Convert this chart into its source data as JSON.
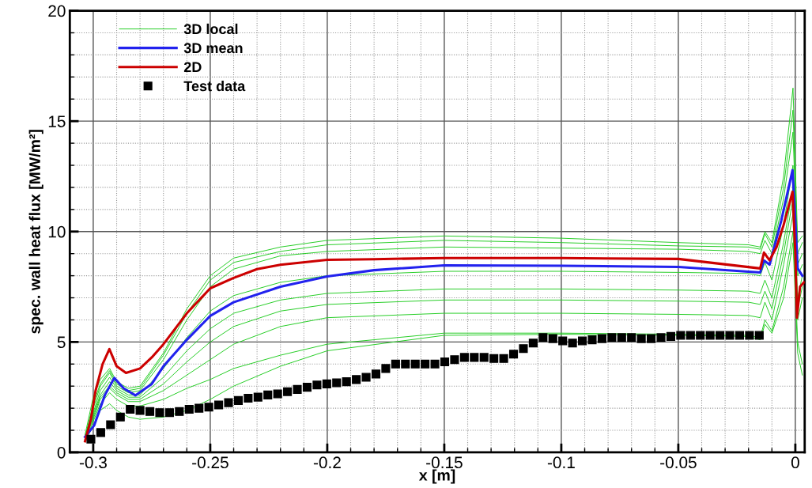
{
  "chart_data": {
    "type": "line",
    "xlabel": "x [m]",
    "ylabel": "spec. wall heat flux [MW/m²]",
    "xlim": [
      -0.31,
      0.004
    ],
    "ylim": [
      0,
      20
    ],
    "xticks": [
      -0.3,
      -0.25,
      -0.2,
      -0.15,
      -0.1,
      -0.05,
      0
    ],
    "yticks": [
      0,
      5,
      10,
      15,
      20
    ],
    "grid": true,
    "legend": "top left",
    "line_style": "solid",
    "x": [
      -0.3035,
      -0.3,
      -0.297,
      -0.293,
      -0.29,
      -0.285,
      -0.28,
      -0.27,
      -0.26,
      -0.25,
      -0.24,
      -0.22,
      -0.2,
      -0.15,
      -0.1,
      -0.05,
      -0.02,
      -0.015,
      -0.013,
      -0.01,
      -0.005,
      -0.001,
      0.001,
      0.003
    ],
    "series": [
      {
        "name": "3D local",
        "color": "#22cc22",
        "values": [
          0.8,
          2.5,
          3.3,
          3.8,
          3.2,
          2.9,
          3.0,
          4.5,
          6.5,
          8.0,
          8.8,
          9.3,
          9.6,
          9.8,
          9.7,
          9.5,
          9.4,
          9.3,
          10.0,
          9.5,
          12.5,
          16.5,
          9.5,
          9.8
        ]
      },
      {
        "color": "#22cc22",
        "values": [
          0.7,
          2.2,
          3.1,
          3.7,
          3.1,
          2.8,
          2.9,
          4.4,
          6.3,
          7.8,
          8.6,
          9.1,
          9.4,
          9.6,
          9.5,
          9.35,
          9.3,
          9.2,
          9.9,
          9.3,
          12.0,
          15.5,
          9.0,
          9.5
        ]
      },
      {
        "color": "#22cc22",
        "values": [
          0.7,
          2.0,
          3.0,
          3.6,
          3.0,
          2.7,
          2.8,
          4.2,
          6.0,
          7.5,
          8.3,
          8.9,
          9.1,
          9.3,
          9.25,
          9.2,
          9.1,
          9.0,
          9.6,
          9.0,
          11.5,
          14.5,
          8.5,
          9.0
        ]
      },
      {
        "color": "#22cc22",
        "values": [
          0.6,
          1.8,
          2.8,
          3.4,
          2.9,
          2.6,
          2.6,
          3.8,
          5.2,
          6.4,
          7.1,
          7.7,
          8.0,
          8.2,
          8.2,
          8.15,
          8.1,
          8.0,
          8.6,
          7.8,
          10.3,
          13.0,
          8.0,
          8.5
        ]
      },
      {
        "color": "#22cc22",
        "values": [
          0.6,
          1.7,
          2.6,
          3.2,
          2.8,
          2.5,
          2.5,
          3.4,
          4.6,
          5.6,
          6.3,
          6.9,
          7.2,
          7.4,
          7.4,
          7.35,
          7.3,
          7.2,
          7.8,
          7.0,
          9.5,
          12.0,
          7.0,
          8.0
        ]
      },
      {
        "color": "#22cc22",
        "values": [
          0.6,
          1.6,
          2.5,
          3.0,
          2.7,
          2.4,
          2.4,
          3.1,
          4.1,
          5.0,
          5.7,
          6.4,
          6.7,
          6.9,
          6.9,
          6.85,
          6.8,
          6.7,
          7.3,
          6.5,
          9.0,
          11.5,
          6.5,
          7.5
        ]
      },
      {
        "color": "#22cc22",
        "values": [
          0.6,
          1.5,
          2.4,
          2.9,
          2.6,
          2.3,
          2.3,
          2.8,
          3.5,
          4.2,
          4.9,
          5.7,
          6.1,
          6.3,
          6.3,
          6.25,
          6.2,
          6.1,
          6.8,
          6.0,
          8.5,
          10.8,
          6.0,
          7.0
        ]
      },
      {
        "color": "#22cc22",
        "values": [
          0.5,
          1.4,
          2.2,
          2.7,
          2.4,
          2.1,
          2.1,
          2.4,
          2.9,
          3.3,
          3.8,
          4.4,
          4.9,
          5.4,
          5.4,
          5.35,
          5.3,
          5.2,
          6.0,
          5.5,
          7.5,
          10.0,
          5.0,
          4.0
        ]
      },
      {
        "color": "#22cc22",
        "values": [
          0.5,
          1.2,
          1.9,
          2.2,
          1.9,
          1.6,
          1.5,
          1.6,
          1.9,
          2.4,
          3.0,
          3.9,
          4.6,
          5.3,
          5.35,
          5.3,
          5.25,
          5.1,
          5.8,
          5.4,
          7.0,
          9.5,
          4.5,
          3.5
        ]
      },
      {
        "name": "3D mean",
        "color": "#2222ee",
        "x": [
          -0.3035,
          -0.2996,
          -0.295,
          -0.291,
          -0.287,
          -0.282,
          -0.275,
          -0.27,
          -0.26,
          -0.25,
          -0.24,
          -0.22,
          -0.2,
          -0.18,
          -0.15,
          -0.1,
          -0.05,
          -0.015,
          -0.0134,
          -0.011,
          -0.006,
          -0.0012,
          0.0,
          0.001,
          0.003
        ],
        "values": [
          0.7,
          1.22,
          2.6,
          3.37,
          2.9,
          2.58,
          3.1,
          3.9,
          5.1,
          6.18,
          6.8,
          7.5,
          7.97,
          8.25,
          8.47,
          8.45,
          8.4,
          8.15,
          8.69,
          8.5,
          10.5,
          12.78,
          10.5,
          8.33,
          8.0
        ]
      },
      {
        "name": "2D",
        "color": "#cc0000",
        "x": [
          -0.3035,
          -0.301,
          -0.299,
          -0.296,
          -0.2931,
          -0.29,
          -0.286,
          -0.28,
          -0.275,
          -0.27,
          -0.265,
          -0.26,
          -0.25,
          -0.24,
          -0.23,
          -0.22,
          -0.2,
          -0.18,
          -0.15,
          -0.1,
          -0.05,
          -0.015,
          -0.0134,
          -0.011,
          -0.008,
          -0.005,
          -0.0012,
          0.0,
          0.0007,
          0.002,
          0.0037
        ],
        "values": [
          0.5,
          1.5,
          2.8,
          4.0,
          4.68,
          3.9,
          3.6,
          3.8,
          4.3,
          4.9,
          5.6,
          6.3,
          7.43,
          7.9,
          8.3,
          8.5,
          8.72,
          8.75,
          8.8,
          8.8,
          8.76,
          8.33,
          9.05,
          8.7,
          9.3,
          10.3,
          11.8,
          9.0,
          6.1,
          7.5,
          7.7
        ]
      },
      {
        "name": "Test data",
        "type": "scatter",
        "marker": "square",
        "color": "#000000",
        "x": [
          -0.301,
          -0.2968,
          -0.2926,
          -0.2884,
          -0.2842,
          -0.28,
          -0.2758,
          -0.2716,
          -0.2674,
          -0.2632,
          -0.259,
          -0.2548,
          -0.2506,
          -0.2464,
          -0.2422,
          -0.238,
          -0.2338,
          -0.2296,
          -0.2254,
          -0.2212,
          -0.217,
          -0.2128,
          -0.2086,
          -0.2044,
          -0.2002,
          -0.196,
          -0.1918,
          -0.1876,
          -0.1834,
          -0.1792,
          -0.175,
          -0.1708,
          -0.1666,
          -0.1624,
          -0.1582,
          -0.154,
          -0.1498,
          -0.1456,
          -0.1414,
          -0.1372,
          -0.133,
          -0.1288,
          -0.1246,
          -0.1204,
          -0.1162,
          -0.112,
          -0.1078,
          -0.1036,
          -0.0994,
          -0.0952,
          -0.091,
          -0.0868,
          -0.0826,
          -0.0784,
          -0.0742,
          -0.07,
          -0.0658,
          -0.0616,
          -0.0574,
          -0.0532,
          -0.049,
          -0.0448,
          -0.0406,
          -0.0364,
          -0.0322,
          -0.028,
          -0.0238,
          -0.0196,
          -0.0154
        ],
        "values": [
          0.6,
          0.9,
          1.25,
          1.6,
          1.95,
          1.9,
          1.85,
          1.8,
          1.8,
          1.85,
          1.95,
          2.0,
          2.05,
          2.15,
          2.25,
          2.35,
          2.45,
          2.5,
          2.6,
          2.65,
          2.75,
          2.85,
          2.95,
          3.05,
          3.1,
          3.15,
          3.2,
          3.3,
          3.4,
          3.55,
          3.8,
          4.0,
          4.0,
          4.0,
          4.0,
          4.0,
          4.1,
          4.2,
          4.3,
          4.3,
          4.3,
          4.25,
          4.25,
          4.45,
          4.7,
          4.95,
          5.2,
          5.15,
          5.05,
          4.95,
          5.05,
          5.1,
          5.15,
          5.2,
          5.2,
          5.2,
          5.15,
          5.15,
          5.2,
          5.25,
          5.3,
          5.3,
          5.3,
          5.3,
          5.3,
          5.3,
          5.3,
          5.3,
          5.3
        ]
      }
    ]
  }
}
